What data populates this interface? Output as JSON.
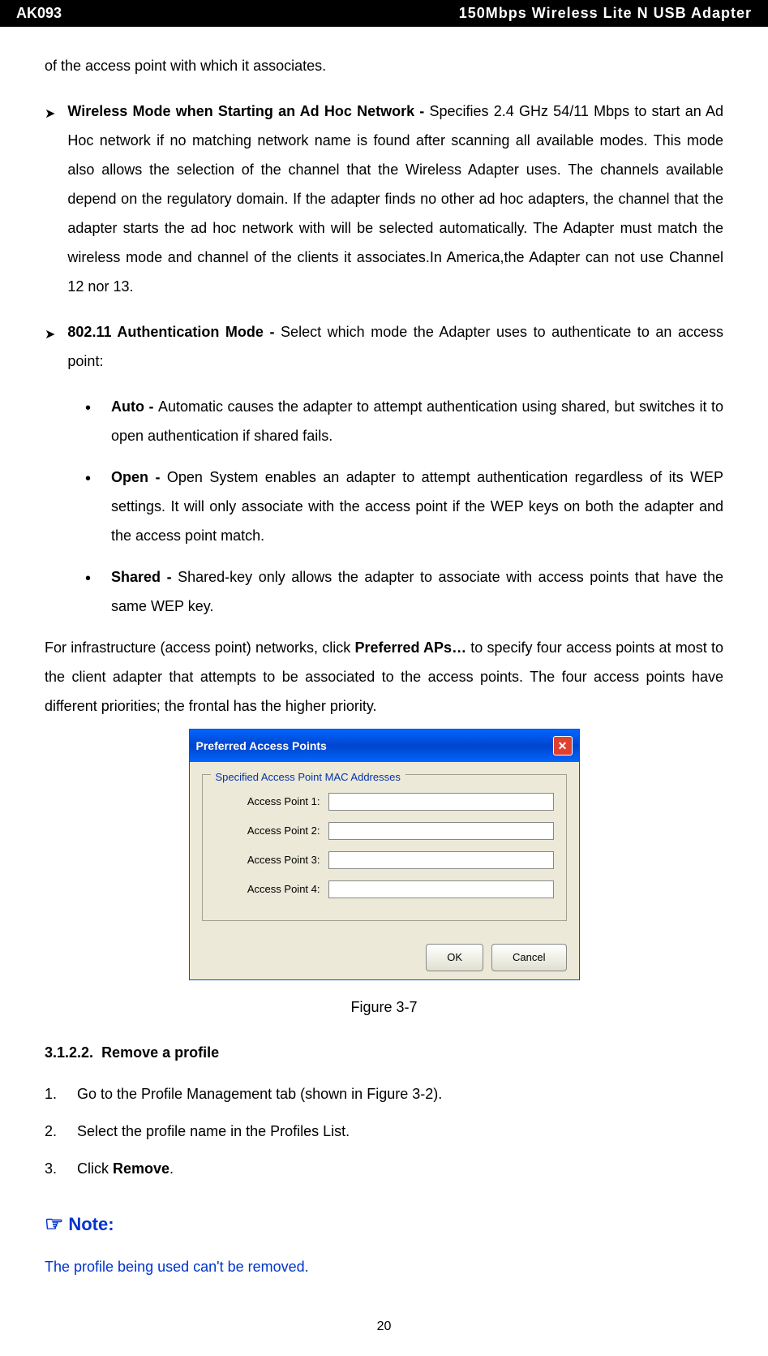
{
  "header": {
    "left": "AK093",
    "right": "150Mbps Wireless Lite N USB Adapter"
  },
  "continuation": "of the access point with which it associates.",
  "bullets": {
    "wireless_mode": {
      "bold": "Wireless Mode when Starting an Ad Hoc Network - ",
      "text": "Specifies 2.4 GHz 54/11 Mbps to start an Ad Hoc network if no matching network name is found after scanning all available modes. This mode also allows the selection of the channel that the Wireless Adapter uses. The channels available depend on the regulatory domain. If the adapter finds no other ad hoc adapters, the channel that the adapter starts the ad hoc network with will be selected automatically. The Adapter must match the wireless mode and channel of the clients it associates.In America,the Adapter can not use Channel 12 nor 13."
    },
    "auth_mode": {
      "bold": "802.11 Authentication Mode - ",
      "text": "Select which mode the Adapter uses to authenticate to an access point:"
    },
    "auto": {
      "bold": "Auto - ",
      "text": "Automatic causes the adapter to attempt authentication using shared, but switches it to open authentication if shared fails."
    },
    "open": {
      "bold": "Open - ",
      "text": "Open System enables an adapter to attempt authentication regardless of its WEP settings. It will only associate with the access point if the WEP keys on both the adapter and the access point match."
    },
    "shared": {
      "bold": "Shared - ",
      "text": "Shared-key only allows the adapter to associate with access points that have the same WEP key."
    }
  },
  "para_preferred": {
    "pre": "For infrastructure (access point) networks, click ",
    "bold": "Preferred APs…",
    "post": " to specify four access points at most to the client adapter that attempts to be associated to the access points. The four access points have different priorities; the frontal has the higher priority."
  },
  "dialog": {
    "title": "Preferred Access Points",
    "group_title": "Specified Access Point MAC Addresses",
    "labels": [
      "Access Point 1:",
      "Access Point 2:",
      "Access Point 3:",
      "Access Point 4:"
    ],
    "ok": "OK",
    "cancel": "Cancel",
    "close": "✕",
    "colors": {
      "titlebar_start": "#0066ff",
      "titlebar_end": "#0044cc",
      "body_bg": "#ece9d8",
      "group_label": "#0033aa",
      "close_bg": "#e04030"
    }
  },
  "figure_caption": "Figure 3-7",
  "section": {
    "number": "3.1.2.2.",
    "title": "Remove a profile"
  },
  "steps": [
    {
      "num": "1.",
      "text": "Go to the Profile Management tab (shown in Figure 3-2)."
    },
    {
      "num": "2.",
      "text": "Select the profile name in the Profiles List."
    },
    {
      "num": "3.",
      "pre": "Click ",
      "bold": "Remove",
      "post": "."
    }
  ],
  "note": {
    "icon": "☞",
    "heading": "Note:",
    "text": "The profile being used can't be removed.",
    "color": "#0033cc"
  },
  "page_number": "20",
  "styling": {
    "body_font": "Arial",
    "body_fontsize": 18,
    "line_height": 2,
    "header_bg": "#000000",
    "header_color": "#ffffff",
    "content_color": "#000000"
  }
}
